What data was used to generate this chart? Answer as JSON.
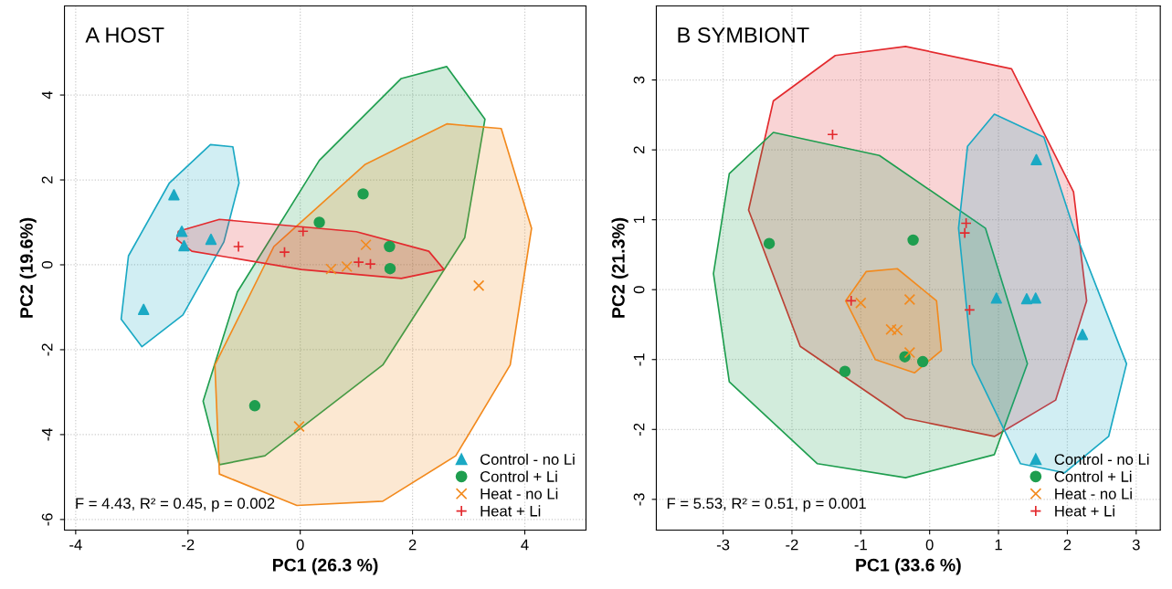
{
  "chart_data": [
    {
      "type": "scatter",
      "title": "A HOST",
      "xlabel": "PC1 (26.3 %)",
      "ylabel": "PC2 (19.6%)",
      "xlim": [
        -4.2,
        5.09
      ],
      "ylim": [
        -6.25,
        6.1
      ],
      "xticks": [
        -4,
        -2,
        0,
        2,
        4
      ],
      "yticks": [
        -6,
        -4,
        -2,
        0,
        2,
        4
      ],
      "grid": true,
      "legend": "bottom right",
      "annotations": [
        "F = 4.43, R² = 0.45, p = 0.002"
      ],
      "series": [
        {
          "type": "area",
          "color": "#1ba9c4",
          "x": [
            -1.2,
            -1.09,
            -1.36,
            -2.09,
            -2.82,
            -3.19,
            -3.06,
            -2.33,
            -1.6
          ],
          "values": [
            2.78,
            1.93,
            0.54,
            -1.18,
            -1.93,
            -1.28,
            0.21,
            1.93,
            2.83
          ]
        },
        {
          "type": "area",
          "color": "#1f9e4f",
          "x": [
            2.61,
            3.29,
            2.93,
            1.47,
            -0.63,
            -1.44,
            -1.73,
            -1.12,
            0.34,
            1.8
          ],
          "values": [
            4.67,
            3.43,
            0.64,
            -2.36,
            -4.5,
            -4.71,
            -3.21,
            -0.64,
            2.46,
            4.39
          ]
        },
        {
          "type": "area",
          "color": "#f28a1e",
          "x": [
            3.58,
            4.12,
            3.74,
            2.77,
            1.47,
            -0.06,
            -1.44,
            -1.52,
            -0.47,
            1.15,
            2.61
          ],
          "values": [
            3.21,
            0.86,
            -2.36,
            -4.5,
            -5.57,
            -5.67,
            -4.93,
            -2.36,
            0.43,
            2.36,
            3.32
          ]
        },
        {
          "type": "area",
          "color": "#e32a2e",
          "x": [
            -2.17,
            -1.44,
            1.0,
            2.29,
            2.56,
            1.8,
            0.02,
            -1.93,
            -2.2
          ],
          "values": [
            0.79,
            1.07,
            0.78,
            0.32,
            -0.11,
            -0.32,
            -0.11,
            0.32,
            0.6
          ]
        },
        {
          "name": "Control - no Li",
          "color": "#1ba9c4",
          "marker": "triangle",
          "x": [
            -2.25,
            -2.11,
            -2.07,
            -1.59,
            -2.79
          ],
          "values": [
            1.65,
            0.79,
            0.45,
            0.6,
            -1.05
          ]
        },
        {
          "name": "Control + Li",
          "color": "#1f9e4f",
          "marker": "circle",
          "x": [
            1.12,
            0.34,
            1.59,
            1.6,
            -0.81
          ],
          "values": [
            1.67,
            1.0,
            0.43,
            -0.09,
            -3.32
          ]
        },
        {
          "name": "Heat - no Li",
          "color": "#f28a1e",
          "marker": "cross",
          "x": [
            1.17,
            0.83,
            0.55,
            3.18,
            -0.02
          ],
          "values": [
            0.47,
            -0.04,
            -0.1,
            -0.49,
            -3.81
          ]
        },
        {
          "name": "Heat + Li",
          "color": "#e32a2e",
          "marker": "plus",
          "x": [
            -1.1,
            -0.28,
            0.05,
            1.04,
            1.25
          ],
          "values": [
            0.43,
            0.3,
            0.79,
            0.06,
            0.02
          ]
        }
      ]
    },
    {
      "type": "scatter",
      "title": "B SYMBIONT",
      "xlabel": "PC1 (33.6 %)",
      "ylabel": "PC2 (21.3%)",
      "xlim": [
        -3.97,
        3.35
      ],
      "ylim": [
        -3.44,
        4.06
      ],
      "xticks": [
        -3,
        -2,
        -1,
        0,
        1,
        2,
        3
      ],
      "yticks": [
        -3,
        -2,
        -1,
        0,
        1,
        2,
        3
      ],
      "grid": true,
      "legend": "bottom right",
      "annotations": [
        "F = 5.53, R² = 0.51, p = 0.001"
      ],
      "series": [
        {
          "type": "area",
          "color": "#e32a2e",
          "x": [
            -0.35,
            1.19,
            2.09,
            2.28,
            1.83,
            0.94,
            -0.35,
            -1.88,
            -2.63,
            -2.27,
            -1.37
          ],
          "values": [
            3.48,
            3.16,
            1.4,
            -0.16,
            -1.58,
            -2.1,
            -1.84,
            -0.81,
            1.14,
            2.7,
            3.35
          ]
        },
        {
          "type": "area",
          "color": "#1f9e4f",
          "x": [
            -2.27,
            -0.73,
            0.81,
            1.42,
            0.94,
            -0.35,
            -1.63,
            -2.91,
            -3.14,
            -2.91
          ],
          "values": [
            2.25,
            1.92,
            0.88,
            -1.06,
            -2.36,
            -2.69,
            -2.49,
            -1.32,
            0.23,
            1.66
          ]
        },
        {
          "type": "area",
          "color": "#1ba9c4",
          "x": [
            0.94,
            1.66,
            2.09,
            2.86,
            2.6,
            1.96,
            1.32,
            0.62,
            0.42,
            0.55
          ],
          "values": [
            2.51,
            2.18,
            0.88,
            -1.06,
            -2.1,
            -2.62,
            -2.49,
            -1.06,
            0.88,
            2.05
          ]
        },
        {
          "type": "area",
          "color": "#f28a1e",
          "x": [
            -0.47,
            0.1,
            0.17,
            -0.22,
            -0.79,
            -1.22,
            -0.92
          ],
          "values": [
            0.3,
            -0.16,
            -0.87,
            -1.19,
            -1.0,
            -0.16,
            0.26
          ]
        },
        {
          "name": "Control - no Li",
          "color": "#1ba9c4",
          "marker": "triangle",
          "x": [
            1.55,
            0.97,
            1.41,
            1.54,
            2.22
          ],
          "values": [
            1.86,
            -0.12,
            -0.13,
            -0.12,
            -0.64
          ]
        },
        {
          "name": "Control + Li",
          "color": "#1f9e4f",
          "marker": "circle",
          "x": [
            -2.33,
            -0.24,
            -1.23,
            -0.36,
            -0.1
          ],
          "values": [
            0.66,
            0.71,
            -1.17,
            -0.96,
            -1.03
          ]
        },
        {
          "name": "Heat - no Li",
          "color": "#f28a1e",
          "marker": "cross",
          "x": [
            -1.0,
            -0.29,
            -0.56,
            -0.47,
            -0.29
          ],
          "values": [
            -0.19,
            -0.14,
            -0.57,
            -0.58,
            -0.9
          ]
        },
        {
          "name": "Heat + Li",
          "color": "#e32a2e",
          "marker": "plus",
          "x": [
            -1.41,
            -1.14,
            0.53,
            0.51,
            0.58
          ],
          "values": [
            2.22,
            -0.16,
            0.95,
            0.81,
            -0.29
          ]
        }
      ]
    }
  ]
}
